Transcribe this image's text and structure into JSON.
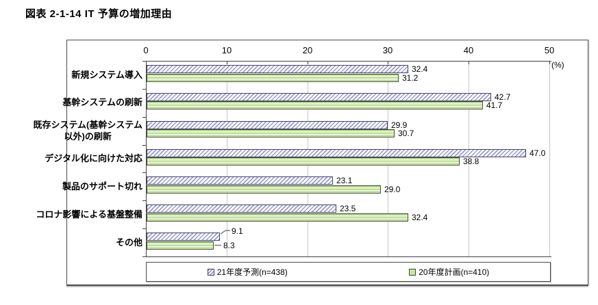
{
  "figure": {
    "title": "図表 2-1-14 IT 予算の増加理由",
    "unit_label": "(%)"
  },
  "chart_data": {
    "type": "bar",
    "orientation": "horizontal",
    "title": "図表 2-1-14 IT 予算の増加理由",
    "categories": [
      "新規システム導入",
      "基幹システムの刷新",
      "既存システム(基幹システム\n以外)の刷新",
      "デジタル化に向けた対応",
      "製品のサポート切れ",
      "コロナ影響による基盤整備",
      "その他"
    ],
    "series": [
      {
        "name": "21年度予測(n=438)",
        "style": "hatched-purple",
        "values": [
          32.4,
          42.7,
          29.9,
          47.0,
          23.1,
          23.5,
          9.1
        ]
      },
      {
        "name": "20年度計画(n=410)",
        "style": "striped-green",
        "values": [
          31.2,
          41.7,
          30.7,
          38.8,
          29.0,
          32.4,
          8.3
        ]
      }
    ],
    "xlim": [
      0,
      50
    ],
    "x_ticks": [
      0,
      10,
      20,
      30,
      40,
      50
    ],
    "grid": true,
    "legend_position": "bottom"
  },
  "colors": {
    "hatch_stripe": "#9a9ad4",
    "green_fill": "#dcefbe",
    "green_stripe": "#a2ca76",
    "bar_border": "#45455f",
    "grid_line": "#c6c6c6",
    "axis_line": "#404040"
  }
}
